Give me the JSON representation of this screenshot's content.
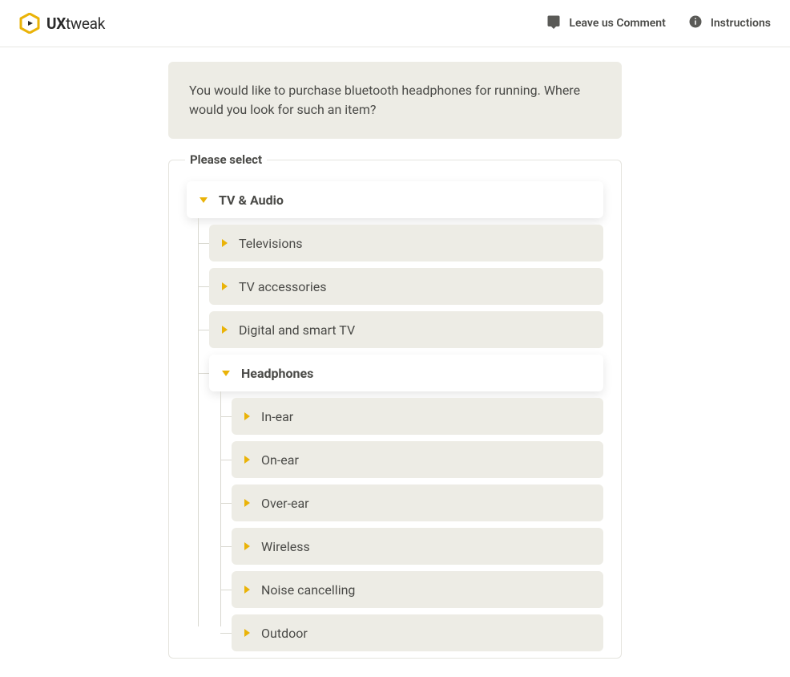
{
  "colors": {
    "accent": "#eab308",
    "panel_bg": "#edece5",
    "text": "#4a4a47",
    "border": "#e5e4de",
    "connector": "#d9d8d0",
    "white": "#ffffff"
  },
  "header": {
    "brand_bold": "UX",
    "brand_light": "tweak",
    "leave_comment": "Leave us Comment",
    "instructions": "Instructions"
  },
  "prompt": "You would like to purchase bluetooth headphones for running. Where would you look for such an item?",
  "select_label": "Please select",
  "tree": {
    "root": {
      "label": "TV & Audio",
      "expanded": true,
      "children": [
        {
          "label": "Televisions",
          "expanded": false
        },
        {
          "label": "TV accessories",
          "expanded": false
        },
        {
          "label": "Digital and smart TV",
          "expanded": false
        },
        {
          "label": "Headphones",
          "expanded": true,
          "children": [
            {
              "label": "In-ear",
              "expanded": false
            },
            {
              "label": "On-ear",
              "expanded": false
            },
            {
              "label": "Over-ear",
              "expanded": false
            },
            {
              "label": "Wireless",
              "expanded": false
            },
            {
              "label": "Noise cancelling",
              "expanded": false
            },
            {
              "label": "Outdoor",
              "expanded": false
            }
          ]
        }
      ]
    }
  }
}
